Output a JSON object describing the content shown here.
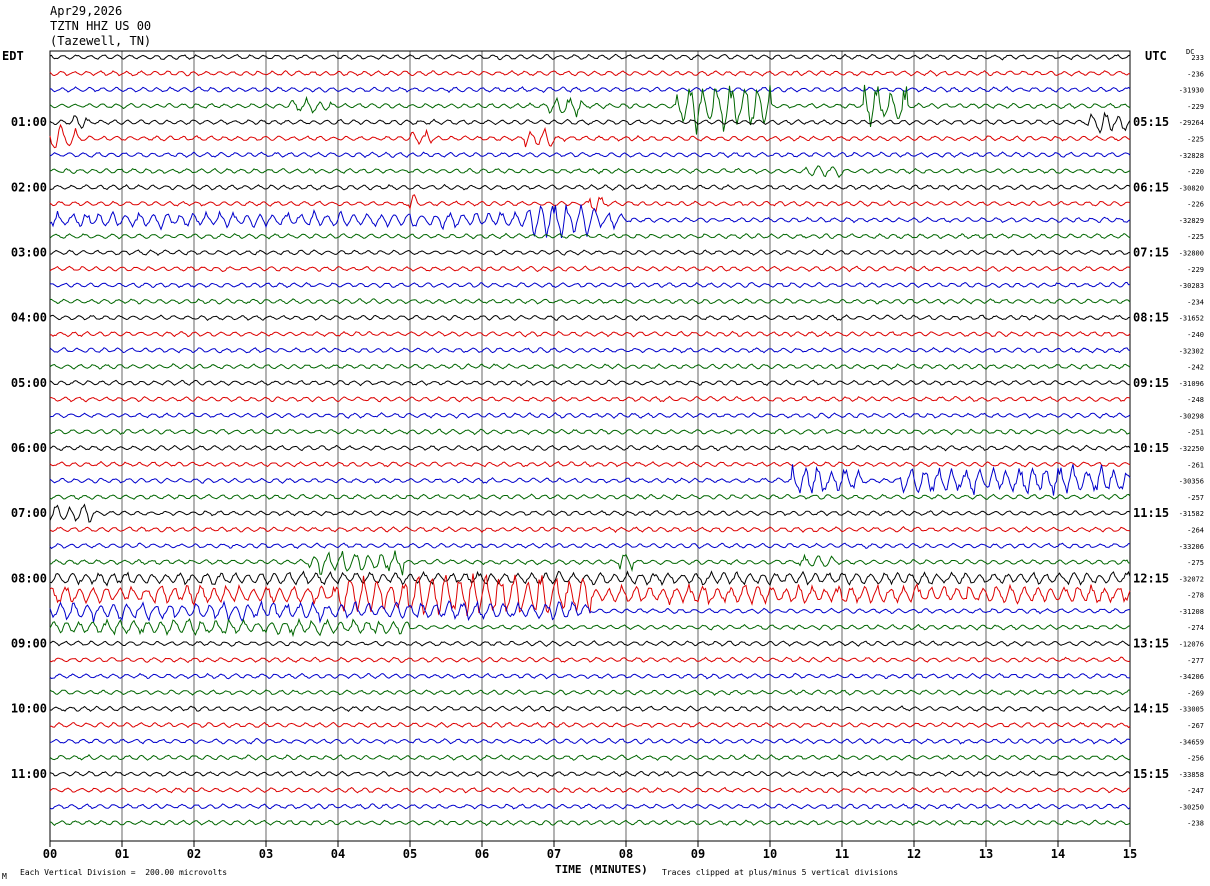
{
  "header": {
    "date": "Apr29,2026",
    "station": "TZTN HHZ US 00",
    "location": "(Tazewell, TN)"
  },
  "left_tz": "EDT",
  "right_tz": "UTC",
  "dc_label": "DC",
  "footer": {
    "scale_note": "Each Vertical Division =  200.00 microvolts",
    "clip_note": "Traces clipped at plus/minus 5 vertical divisions",
    "corner_mark": "M"
  },
  "colors": {
    "black": "#000000",
    "red": "#dd0000",
    "blue": "#0000cc",
    "green": "#006600",
    "grid": "#000000"
  },
  "chart_data": {
    "type": "line",
    "title": "TZTN HHZ US 00",
    "xlabel": "TIME (MINUTES)",
    "xlim": [
      0,
      15
    ],
    "x_ticks": [
      "00",
      "01",
      "02",
      "03",
      "04",
      "05",
      "06",
      "07",
      "08",
      "09",
      "10",
      "11",
      "12",
      "13",
      "14",
      "15"
    ],
    "trace_colors": [
      "black",
      "red",
      "blue",
      "green"
    ],
    "left_hour_labels": [
      "01:00",
      "02:00",
      "03:00",
      "04:00",
      "05:00",
      "06:00",
      "07:00",
      "08:00",
      "09:00",
      "10:00",
      "11:00"
    ],
    "right_hour_labels": [
      "05:15",
      "06:15",
      "07:15",
      "08:15",
      "09:15",
      "10:15",
      "11:15",
      "12:15",
      "13:15",
      "14:15",
      "15:15"
    ],
    "dc_offsets": [
      "233",
      "-236",
      "-31930",
      "-229",
      "-29264",
      "-225",
      "-32828",
      "-220",
      "-30820",
      "-226",
      "-32829",
      "-225",
      "-32800",
      "-229",
      "-30283",
      "-234",
      "-31652",
      "-240",
      "-32302",
      "-242",
      "-31096",
      "-248",
      "-30298",
      "-251",
      "-32250",
      "-261",
      "-30356",
      "-257",
      "-31582",
      "-264",
      "-33206",
      "-275",
      "-32072",
      "-278",
      "-31208",
      "-274",
      "-12076",
      "-277",
      "-34206",
      "-269",
      "-33005",
      "-267",
      "-34659",
      "-256",
      "-33858",
      "-247",
      "-30250",
      "-238"
    ],
    "events": [
      {
        "trace": 3,
        "segments": [
          [
            6.9,
            7.4,
            0.5
          ],
          [
            8.7,
            10.0,
            1.6
          ],
          [
            11.3,
            11.9,
            1.6
          ],
          [
            3.3,
            3.9,
            0.4
          ]
        ]
      },
      {
        "trace": 4,
        "segments": [
          [
            14.4,
            15.0,
            0.6
          ],
          [
            0.3,
            0.5,
            0.5
          ]
        ]
      },
      {
        "trace": 5,
        "segments": [
          [
            0.0,
            0.4,
            0.8
          ],
          [
            6.6,
            7.0,
            0.5
          ],
          [
            5.0,
            5.3,
            0.4
          ]
        ]
      },
      {
        "trace": 7,
        "segments": [
          [
            10.5,
            11.0,
            0.3
          ]
        ]
      },
      {
        "trace": 9,
        "segments": [
          [
            5.0,
            5.1,
            0.6
          ],
          [
            7.5,
            7.7,
            0.5
          ]
        ]
      },
      {
        "trace": 10,
        "segments": [
          [
            0.0,
            8.0,
            0.4
          ],
          [
            6.6,
            7.6,
            0.8
          ]
        ]
      },
      {
        "trace": 26,
        "segments": [
          [
            10.3,
            11.3,
            0.8
          ],
          [
            11.8,
            15.0,
            0.9
          ]
        ]
      },
      {
        "trace": 28,
        "segments": [
          [
            0.0,
            0.6,
            0.6
          ]
        ]
      },
      {
        "trace": 31,
        "segments": [
          [
            3.6,
            4.9,
            0.7
          ],
          [
            7.9,
            8.1,
            0.6
          ],
          [
            10.4,
            10.9,
            0.3
          ]
        ]
      },
      {
        "trace": 32,
        "segments": [
          [
            0.0,
            15.0,
            0.3
          ]
        ]
      },
      {
        "trace": 33,
        "segments": [
          [
            0.0,
            15.0,
            0.5
          ],
          [
            4.0,
            7.5,
            0.9
          ]
        ]
      },
      {
        "trace": 34,
        "segments": [
          [
            0.0,
            7.5,
            0.5
          ]
        ]
      },
      {
        "trace": 35,
        "segments": [
          [
            0.0,
            5.0,
            0.4
          ]
        ]
      }
    ]
  }
}
